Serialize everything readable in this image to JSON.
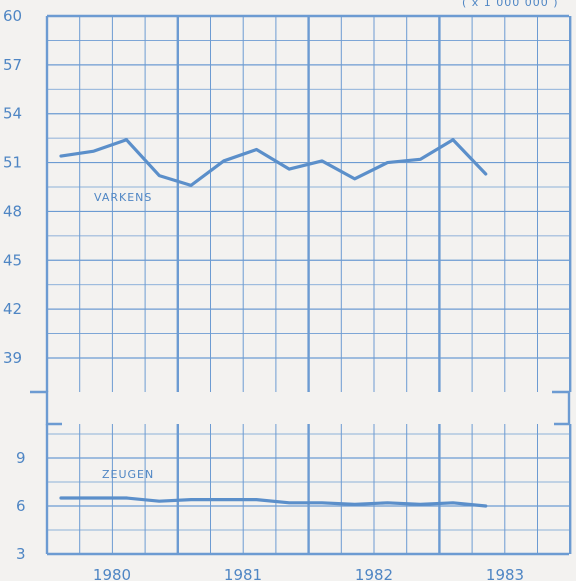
{
  "chart_data": [
    {
      "type": "line",
      "unit_note": "( x 1 000 000 )",
      "ylim": [
        36,
        60
      ],
      "y_ticks": [
        "39",
        "42",
        "45",
        "48",
        "51",
        "54",
        "57",
        "60"
      ],
      "series": [
        {
          "name": "VARKENS",
          "color": "#5b8fca",
          "x": [
            1980.0,
            1980.25,
            1980.5,
            1980.75,
            1981.0,
            1981.25,
            1981.5,
            1981.75,
            1982.0,
            1982.25,
            1982.5,
            1982.75,
            1983.0,
            1983.25,
            1983.5
          ],
          "values": [
            51.4,
            51.7,
            52.4,
            50.2,
            49.6,
            51.1,
            51.8,
            50.6,
            51.1,
            50.0,
            51.0,
            51.2,
            52.4,
            50.3,
            null
          ]
        }
      ]
    },
    {
      "type": "line",
      "ylim": [
        3,
        11
      ],
      "y_ticks": [
        "3",
        "6",
        "9"
      ],
      "x_ticks": [
        "1980",
        "1981",
        "1982",
        "1983"
      ],
      "series": [
        {
          "name": "ZEUGEN",
          "color": "#5b8fca",
          "x": [
            1980.0,
            1980.25,
            1980.5,
            1980.75,
            1981.0,
            1981.25,
            1981.5,
            1981.75,
            1982.0,
            1982.25,
            1982.5,
            1982.75,
            1983.0,
            1983.25,
            1983.5
          ],
          "values": [
            6.5,
            6.5,
            6.5,
            6.3,
            6.4,
            6.4,
            6.4,
            6.2,
            6.2,
            6.1,
            6.2,
            6.1,
            6.2,
            6.0,
            null
          ]
        }
      ]
    }
  ]
}
